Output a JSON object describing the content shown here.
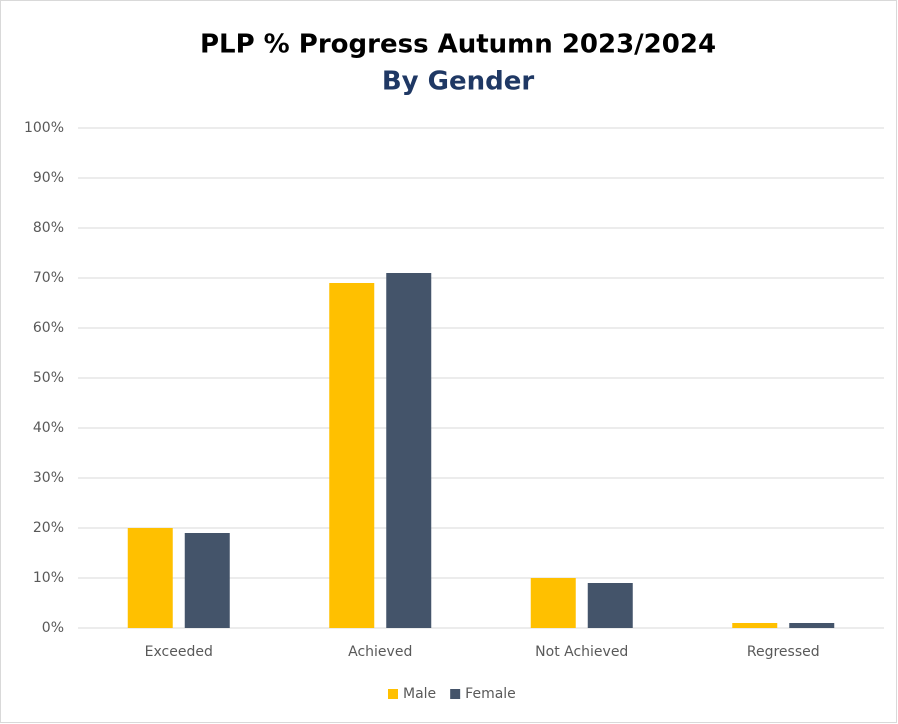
{
  "chart_data": {
    "type": "bar",
    "title": "PLP % Progress Autumn 2023/2024",
    "subtitle": "By Gender",
    "categories": [
      "Exceeded",
      "Achieved",
      "Not Achieved",
      "Regressed"
    ],
    "series": [
      {
        "name": "Male",
        "color": "#ffc000",
        "values": [
          20,
          69,
          10,
          1
        ]
      },
      {
        "name": "Female",
        "color": "#44546a",
        "values": [
          19,
          71,
          9,
          1
        ]
      }
    ],
    "ylim": [
      0,
      100
    ],
    "yticks": [
      {
        "value": 0,
        "label": "0%"
      },
      {
        "value": 10,
        "label": "10%"
      },
      {
        "value": 20,
        "label": "20%"
      },
      {
        "value": 30,
        "label": "30%"
      },
      {
        "value": 40,
        "label": "40%"
      },
      {
        "value": 50,
        "label": "50%"
      },
      {
        "value": 60,
        "label": "60%"
      },
      {
        "value": 70,
        "label": "70%"
      },
      {
        "value": 80,
        "label": "80%"
      },
      {
        "value": 90,
        "label": "90%"
      },
      {
        "value": 100,
        "label": "100%"
      }
    ],
    "grid": true,
    "legend": "bottom"
  }
}
